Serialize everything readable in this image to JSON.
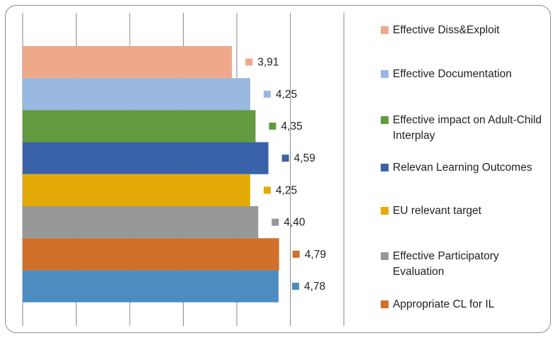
{
  "chart_data": {
    "type": "bar",
    "orientation": "horizontal",
    "title": "",
    "xlabel": "",
    "ylabel": "",
    "xlim": [
      0,
      6
    ],
    "grid": "vertical",
    "legend_position": "right",
    "categories": [
      "Effective Diss&Exploit",
      "Effective Documentation",
      "Effective impact on Adult-Child Interplay",
      "Relevan Learning Outcomes",
      "EU relevant target",
      "Effective Participatory Evaluation",
      "Appropriate CL for IL",
      ""
    ],
    "values": [
      3.91,
      4.25,
      4.35,
      4.59,
      4.25,
      4.4,
      4.79,
      4.78
    ],
    "value_labels": [
      "3,91",
      "4,25",
      "4,35",
      "4,59",
      "4,25",
      "4,40",
      "4,79",
      "4,78"
    ],
    "colors": [
      "#F0A88A",
      "#98B8DF",
      "#629A3F",
      "#3A62A8",
      "#E4AA07",
      "#979797",
      "#D0702A",
      "#4D8CC0"
    ]
  },
  "legend": {
    "items": [
      {
        "label": "Effective Diss&Exploit",
        "color": "#F0A88A"
      },
      {
        "label": "Effective Documentation",
        "color": "#98B8DF"
      },
      {
        "label": "Effective impact on Adult-Child Interplay",
        "color": "#629A3F"
      },
      {
        "label": "Relevan Learning Outcomes",
        "color": "#3A62A8"
      },
      {
        "label": "EU relevant target",
        "color": "#E4AA07"
      },
      {
        "label": "Effective Participatory Evaluation",
        "color": "#979797"
      },
      {
        "label": "Appropriate CL for IL",
        "color": "#D0702A"
      }
    ]
  }
}
